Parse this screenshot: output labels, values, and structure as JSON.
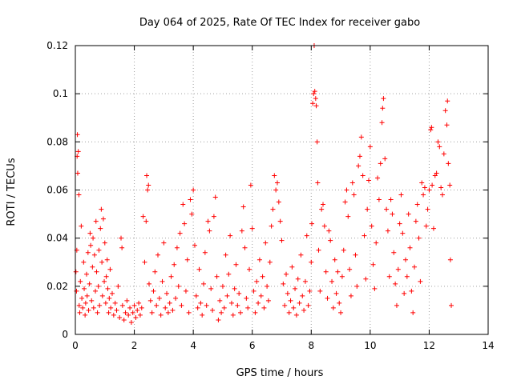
{
  "chart_data": {
    "type": "scatter",
    "title": "Day 064 of 2025, Rate Of TEC Index for receiver gabo",
    "xlabel": "GPS time / hours",
    "ylabel": "ROTI / TECUs",
    "xlim": [
      0,
      14
    ],
    "ylim": [
      0,
      0.12
    ],
    "xticks": [
      0,
      2,
      4,
      6,
      8,
      10,
      12,
      14
    ],
    "xtick_labels": [
      "0",
      "2",
      "4",
      "6",
      "8",
      "10",
      "12",
      "14"
    ],
    "yticks": [
      0,
      0.02,
      0.04,
      0.06,
      0.08,
      0.1,
      0.12
    ],
    "ytick_labels": [
      "0",
      "0.02",
      "0.04",
      "0.06",
      "0.08",
      "0.1",
      "0.12"
    ],
    "grid": true,
    "marker": "+",
    "color": "#ff0000",
    "series": [
      {
        "name": "ROTI",
        "points": [
          [
            0.02,
            0.026
          ],
          [
            0.04,
            0.018
          ],
          [
            0.05,
            0.035
          ],
          [
            0.06,
            0.074
          ],
          [
            0.07,
            0.083
          ],
          [
            0.08,
            0.067
          ],
          [
            0.1,
            0.076
          ],
          [
            0.12,
            0.058
          ],
          [
            0.13,
            0.012
          ],
          [
            0.15,
            0.009
          ],
          [
            0.17,
            0.022
          ],
          [
            0.2,
            0.045
          ],
          [
            0.22,
            0.015
          ],
          [
            0.25,
            0.011
          ],
          [
            0.28,
            0.03
          ],
          [
            0.3,
            0.019
          ],
          [
            0.33,
            0.008
          ],
          [
            0.35,
            0.013
          ],
          [
            0.38,
            0.025
          ],
          [
            0.4,
            0.016
          ],
          [
            0.43,
            0.034
          ],
          [
            0.45,
            0.01
          ],
          [
            0.48,
            0.021
          ],
          [
            0.5,
            0.042
          ],
          [
            0.52,
            0.037
          ],
          [
            0.55,
            0.014
          ],
          [
            0.58,
            0.028
          ],
          [
            0.6,
            0.04
          ],
          [
            0.62,
            0.011
          ],
          [
            0.65,
            0.033
          ],
          [
            0.68,
            0.018
          ],
          [
            0.7,
            0.047
          ],
          [
            0.72,
            0.026
          ],
          [
            0.75,
            0.009
          ],
          [
            0.78,
            0.02
          ],
          [
            0.8,
            0.035
          ],
          [
            0.82,
            0.012
          ],
          [
            0.85,
            0.044
          ],
          [
            0.88,
            0.052
          ],
          [
            0.9,
            0.03
          ],
          [
            0.92,
            0.016
          ],
          [
            0.95,
            0.048
          ],
          [
            0.98,
            0.022
          ],
          [
            1.0,
            0.038
          ],
          [
            1.03,
            0.013
          ],
          [
            1.05,
            0.024
          ],
          [
            1.08,
            0.031
          ],
          [
            1.1,
            0.019
          ],
          [
            1.13,
            0.009
          ],
          [
            1.15,
            0.015
          ],
          [
            1.18,
            0.027
          ],
          [
            1.2,
            0.011
          ],
          [
            1.25,
            0.017
          ],
          [
            1.3,
            0.008
          ],
          [
            1.35,
            0.013
          ],
          [
            1.4,
            0.01
          ],
          [
            1.45,
            0.02
          ],
          [
            1.5,
            0.007
          ],
          [
            1.55,
            0.04
          ],
          [
            1.58,
            0.036
          ],
          [
            1.6,
            0.012
          ],
          [
            1.65,
            0.006
          ],
          [
            1.7,
            0.009
          ],
          [
            1.75,
            0.014
          ],
          [
            1.8,
            0.008
          ],
          [
            1.85,
            0.011
          ],
          [
            1.9,
            0.005
          ],
          [
            1.95,
            0.009
          ],
          [
            2.0,
            0.012
          ],
          [
            2.05,
            0.007
          ],
          [
            2.1,
            0.01
          ],
          [
            2.15,
            0.013
          ],
          [
            2.2,
            0.008
          ],
          [
            2.25,
            0.011
          ],
          [
            2.3,
            0.049
          ],
          [
            2.35,
            0.03
          ],
          [
            2.4,
            0.047
          ],
          [
            2.42,
            0.066
          ],
          [
            2.45,
            0.06
          ],
          [
            2.48,
            0.062
          ],
          [
            2.5,
            0.021
          ],
          [
            2.55,
            0.014
          ],
          [
            2.6,
            0.009
          ],
          [
            2.65,
            0.018
          ],
          [
            2.7,
            0.026
          ],
          [
            2.75,
            0.012
          ],
          [
            2.8,
            0.033
          ],
          [
            2.85,
            0.015
          ],
          [
            2.9,
            0.008
          ],
          [
            2.95,
            0.022
          ],
          [
            3.0,
            0.038
          ],
          [
            3.05,
            0.011
          ],
          [
            3.1,
            0.017
          ],
          [
            3.15,
            0.009
          ],
          [
            3.2,
            0.013
          ],
          [
            3.25,
            0.024
          ],
          [
            3.3,
            0.01
          ],
          [
            3.35,
            0.029
          ],
          [
            3.4,
            0.015
          ],
          [
            3.45,
            0.036
          ],
          [
            3.5,
            0.02
          ],
          [
            3.55,
            0.042
          ],
          [
            3.6,
            0.012
          ],
          [
            3.65,
            0.054
          ],
          [
            3.7,
            0.046
          ],
          [
            3.75,
            0.018
          ],
          [
            3.8,
            0.031
          ],
          [
            3.85,
            0.009
          ],
          [
            3.9,
            0.056
          ],
          [
            3.95,
            0.05
          ],
          [
            4.0,
            0.06
          ],
          [
            4.05,
            0.037
          ],
          [
            4.1,
            0.016
          ],
          [
            4.15,
            0.011
          ],
          [
            4.2,
            0.027
          ],
          [
            4.25,
            0.013
          ],
          [
            4.3,
            0.008
          ],
          [
            4.35,
            0.021
          ],
          [
            4.4,
            0.034
          ],
          [
            4.45,
            0.012
          ],
          [
            4.5,
            0.047
          ],
          [
            4.55,
            0.043
          ],
          [
            4.6,
            0.019
          ],
          [
            4.65,
            0.01
          ],
          [
            4.7,
            0.049
          ],
          [
            4.75,
            0.057
          ],
          [
            4.8,
            0.024
          ],
          [
            4.85,
            0.006
          ],
          [
            4.9,
            0.014
          ],
          [
            4.95,
            0.009
          ],
          [
            5.0,
            0.02
          ],
          [
            5.05,
            0.011
          ],
          [
            5.1,
            0.033
          ],
          [
            5.15,
            0.016
          ],
          [
            5.2,
            0.025
          ],
          [
            5.25,
            0.041
          ],
          [
            5.3,
            0.013
          ],
          [
            5.35,
            0.008
          ],
          [
            5.4,
            0.019
          ],
          [
            5.45,
            0.029
          ],
          [
            5.5,
            0.012
          ],
          [
            5.55,
            0.017
          ],
          [
            5.6,
            0.009
          ],
          [
            5.65,
            0.043
          ],
          [
            5.7,
            0.053
          ],
          [
            5.75,
            0.036
          ],
          [
            5.8,
            0.015
          ],
          [
            5.85,
            0.011
          ],
          [
            5.9,
            0.027
          ],
          [
            5.95,
            0.062
          ],
          [
            6.0,
            0.044
          ],
          [
            6.05,
            0.018
          ],
          [
            6.1,
            0.009
          ],
          [
            6.15,
            0.022
          ],
          [
            6.2,
            0.013
          ],
          [
            6.25,
            0.031
          ],
          [
            6.3,
            0.016
          ],
          [
            6.35,
            0.024
          ],
          [
            6.4,
            0.011
          ],
          [
            6.45,
            0.038
          ],
          [
            6.5,
            0.02
          ],
          [
            6.55,
            0.014
          ],
          [
            6.6,
            0.03
          ],
          [
            6.65,
            0.045
          ],
          [
            6.7,
            0.052
          ],
          [
            6.75,
            0.066
          ],
          [
            6.8,
            0.06
          ],
          [
            6.85,
            0.063
          ],
          [
            6.9,
            0.055
          ],
          [
            6.95,
            0.047
          ],
          [
            7.0,
            0.039
          ],
          [
            7.05,
            0.021
          ],
          [
            7.1,
            0.012
          ],
          [
            7.15,
            0.025
          ],
          [
            7.2,
            0.017
          ],
          [
            7.25,
            0.009
          ],
          [
            7.3,
            0.014
          ],
          [
            7.35,
            0.028
          ],
          [
            7.4,
            0.011
          ],
          [
            7.45,
            0.019
          ],
          [
            7.5,
            0.008
          ],
          [
            7.55,
            0.023
          ],
          [
            7.6,
            0.013
          ],
          [
            7.65,
            0.033
          ],
          [
            7.7,
            0.016
          ],
          [
            7.75,
            0.01
          ],
          [
            7.8,
            0.022
          ],
          [
            7.85,
            0.041
          ],
          [
            7.9,
            0.012
          ],
          [
            7.95,
            0.018
          ],
          [
            8.0,
            0.03
          ],
          [
            8.02,
            0.046
          ],
          [
            8.05,
            0.096
          ],
          [
            8.08,
            0.1
          ],
          [
            8.1,
            0.12
          ],
          [
            8.12,
            0.101
          ],
          [
            8.15,
            0.098
          ],
          [
            8.17,
            0.095
          ],
          [
            8.2,
            0.08
          ],
          [
            8.22,
            0.063
          ],
          [
            8.25,
            0.035
          ],
          [
            8.3,
            0.018
          ],
          [
            8.35,
            0.052
          ],
          [
            8.4,
            0.054
          ],
          [
            8.45,
            0.045
          ],
          [
            8.5,
            0.026
          ],
          [
            8.55,
            0.015
          ],
          [
            8.6,
            0.043
          ],
          [
            8.65,
            0.039
          ],
          [
            8.7,
            0.022
          ],
          [
            8.75,
            0.011
          ],
          [
            8.8,
            0.031
          ],
          [
            8.85,
            0.017
          ],
          [
            8.9,
            0.026
          ],
          [
            8.95,
            0.013
          ],
          [
            9.0,
            0.009
          ],
          [
            9.05,
            0.024
          ],
          [
            9.1,
            0.035
          ],
          [
            9.15,
            0.055
          ],
          [
            9.2,
            0.06
          ],
          [
            9.25,
            0.049
          ],
          [
            9.3,
            0.027
          ],
          [
            9.35,
            0.016
          ],
          [
            9.4,
            0.063
          ],
          [
            9.45,
            0.058
          ],
          [
            9.5,
            0.033
          ],
          [
            9.55,
            0.02
          ],
          [
            9.6,
            0.07
          ],
          [
            9.65,
            0.074
          ],
          [
            9.7,
            0.082
          ],
          [
            9.75,
            0.066
          ],
          [
            9.8,
            0.041
          ],
          [
            9.85,
            0.023
          ],
          [
            9.9,
            0.052
          ],
          [
            9.95,
            0.064
          ],
          [
            10.0,
            0.078
          ],
          [
            10.05,
            0.045
          ],
          [
            10.1,
            0.029
          ],
          [
            10.15,
            0.019
          ],
          [
            10.2,
            0.038
          ],
          [
            10.25,
            0.065
          ],
          [
            10.3,
            0.056
          ],
          [
            10.35,
            0.071
          ],
          [
            10.4,
            0.088
          ],
          [
            10.42,
            0.094
          ],
          [
            10.45,
            0.098
          ],
          [
            10.5,
            0.073
          ],
          [
            10.55,
            0.052
          ],
          [
            10.6,
            0.043
          ],
          [
            10.65,
            0.024
          ],
          [
            10.7,
            0.056
          ],
          [
            10.75,
            0.05
          ],
          [
            10.8,
            0.034
          ],
          [
            10.85,
            0.021
          ],
          [
            10.9,
            0.012
          ],
          [
            10.95,
            0.027
          ],
          [
            11.0,
            0.046
          ],
          [
            11.05,
            0.058
          ],
          [
            11.1,
            0.042
          ],
          [
            11.15,
            0.017
          ],
          [
            11.2,
            0.031
          ],
          [
            11.25,
            0.024
          ],
          [
            11.3,
            0.05
          ],
          [
            11.35,
            0.036
          ],
          [
            11.4,
            0.018
          ],
          [
            11.45,
            0.009
          ],
          [
            11.5,
            0.028
          ],
          [
            11.55,
            0.047
          ],
          [
            11.6,
            0.054
          ],
          [
            11.65,
            0.04
          ],
          [
            11.7,
            0.022
          ],
          [
            11.75,
            0.063
          ],
          [
            11.8,
            0.058
          ],
          [
            11.85,
            0.061
          ],
          [
            11.9,
            0.045
          ],
          [
            11.95,
            0.052
          ],
          [
            12.0,
            0.06
          ],
          [
            12.05,
            0.085
          ],
          [
            12.08,
            0.086
          ],
          [
            12.1,
            0.062
          ],
          [
            12.15,
            0.044
          ],
          [
            12.2,
            0.066
          ],
          [
            12.25,
            0.067
          ],
          [
            12.3,
            0.08
          ],
          [
            12.35,
            0.078
          ],
          [
            12.4,
            0.061
          ],
          [
            12.45,
            0.058
          ],
          [
            12.5,
            0.075
          ],
          [
            12.55,
            0.093
          ],
          [
            12.6,
            0.087
          ],
          [
            12.62,
            0.097
          ],
          [
            12.65,
            0.071
          ],
          [
            12.7,
            0.062
          ],
          [
            12.72,
            0.031
          ],
          [
            12.75,
            0.012
          ]
        ]
      }
    ]
  }
}
